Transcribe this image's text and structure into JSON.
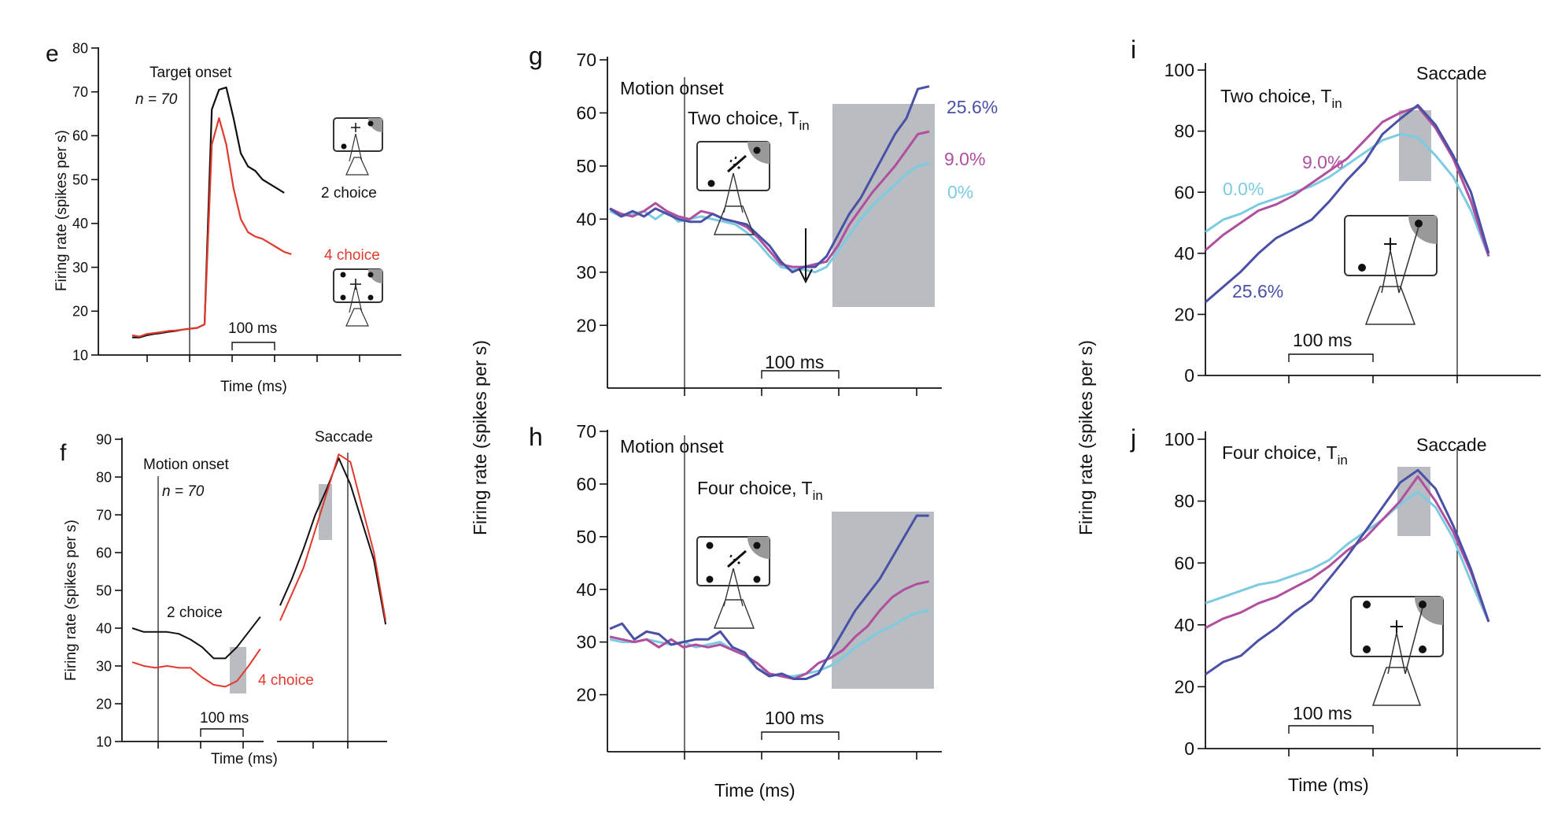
{
  "colors": {
    "black": "#111111",
    "red": "#e03a2e",
    "blue": "#4a50a6",
    "magenta": "#b14f9f",
    "cyan": "#7ccbe0",
    "shade": "#b9bcc1"
  },
  "shared_labels": {
    "firing_rate_small": "Firing rate (spikes per s)",
    "firing_rate_big": "Firing rate (spikes per s)"
  },
  "chart_data": [
    {
      "panel": "e",
      "type": "line",
      "ylabel": "Firing rate (spikes per s)",
      "xlabel": "Time (ms)",
      "ylim": [
        10,
        80
      ],
      "yticks": [
        10,
        20,
        30,
        40,
        50,
        60,
        70,
        80
      ],
      "event_label": "Target onset",
      "n_label": "n = 70",
      "scale_bar": "100 ms",
      "series": [
        {
          "name": "2 choice",
          "color": "#111111",
          "x": [
            0,
            10,
            20,
            30,
            40,
            50,
            60,
            70,
            80,
            90,
            100,
            110,
            120,
            130,
            140,
            150,
            160,
            170,
            180,
            190,
            200,
            210,
            220,
            230,
            240,
            250,
            260
          ],
          "y": [
            14,
            14,
            14.5,
            14.8,
            15,
            15.3,
            15.5,
            15.8,
            16,
            16.2,
            17,
            66,
            70.5,
            71,
            64,
            56,
            53,
            52,
            50,
            49,
            48,
            47,
            null,
            null,
            null,
            null,
            null
          ]
        },
        {
          "name": "4 choice",
          "color": "#e03a2e",
          "x": [
            0,
            10,
            20,
            30,
            40,
            50,
            60,
            70,
            80,
            90,
            100,
            110,
            120,
            130,
            140,
            150,
            160,
            170,
            180,
            190,
            200,
            210,
            220
          ],
          "y": [
            14.5,
            14.2,
            14.8,
            15,
            15.2,
            15.5,
            15.6,
            15.8,
            16,
            16.2,
            17,
            58,
            64,
            58,
            48,
            41,
            38,
            37,
            36.5,
            35.5,
            34.5,
            33.5,
            33
          ]
        }
      ]
    },
    {
      "panel": "f",
      "type": "line",
      "ylabel": "Firing rate (spikes per s)",
      "xlabel": "Time (ms)",
      "ylim": [
        10,
        90
      ],
      "yticks": [
        10,
        20,
        30,
        40,
        50,
        60,
        70,
        80,
        90
      ],
      "event_labels": [
        "Motion onset",
        "Saccade"
      ],
      "n_label": "n = 70",
      "scale_bar": "100 ms",
      "series": [
        {
          "name": "2 choice",
          "color": "#111111",
          "left_y": [
            40,
            39,
            39,
            39,
            38.5,
            37,
            35,
            32,
            32,
            35,
            39,
            43
          ],
          "right_y": [
            46,
            53,
            61,
            70,
            77,
            85,
            78,
            68,
            58,
            41
          ]
        },
        {
          "name": "4 choice",
          "color": "#e03a2e",
          "left_y": [
            31,
            30,
            29.5,
            30,
            29.5,
            29.5,
            27,
            25,
            24.5,
            26,
            30,
            34.5
          ],
          "right_y": [
            42,
            49,
            56,
            66,
            76,
            86,
            84,
            72,
            60,
            42
          ]
        }
      ]
    },
    {
      "panel": "g",
      "type": "line",
      "ylim": [
        15,
        70
      ],
      "yticks": [
        20,
        30,
        40,
        50,
        60,
        70
      ],
      "event_label": "Motion onset",
      "condition": "Two choice, T",
      "condition_sub": "in",
      "scale_bar": "100 ms",
      "series": [
        {
          "name": "25.6%",
          "color": "#4a50a6",
          "y": [
            42,
            40.5,
            41.5,
            40.5,
            42,
            41,
            40,
            39.5,
            39.5,
            41,
            40,
            39.5,
            39,
            37,
            35,
            32,
            30,
            31,
            31,
            33,
            37,
            41,
            44,
            48,
            52,
            56,
            59,
            64.5,
            65
          ]
        },
        {
          "name": "9.0%",
          "color": "#b14f9f",
          "y": [
            42,
            41,
            40.5,
            41.5,
            43,
            41.5,
            40.5,
            40,
            41.5,
            41,
            40,
            39.5,
            38.5,
            36.5,
            34,
            31.5,
            31,
            31,
            31.5,
            32,
            35,
            39,
            42,
            45,
            47.5,
            50,
            53,
            56,
            56.5
          ]
        },
        {
          "name": "0%",
          "color": "#7ccbe0",
          "y": [
            41.5,
            40.5,
            41,
            41.5,
            40,
            41.5,
            39.5,
            40,
            40.5,
            40,
            39.5,
            39,
            37.5,
            35.5,
            33,
            31,
            30.5,
            30.5,
            30,
            31,
            34,
            37,
            40,
            42.5,
            44.5,
            46.5,
            48.5,
            50,
            50.5
          ]
        }
      ]
    },
    {
      "panel": "h",
      "type": "line",
      "ylim": [
        15,
        70
      ],
      "yticks": [
        20,
        30,
        40,
        50,
        60,
        70
      ],
      "event_label": "Motion onset",
      "condition": "Four choice, T",
      "condition_sub": "in",
      "scale_bar": "100 ms",
      "xlabel": "Time (ms)",
      "series": [
        {
          "name": "25.6%",
          "color": "#4a50a6",
          "y": [
            32.5,
            33.5,
            30.5,
            32,
            31.5,
            29.5,
            30,
            30.5,
            30.5,
            32,
            29,
            28,
            25,
            23.5,
            24,
            23,
            23,
            24,
            28,
            32,
            36,
            39,
            42,
            46,
            50,
            54,
            54
          ]
        },
        {
          "name": "9.0%",
          "color": "#b14f9f",
          "y": [
            31,
            30.5,
            30,
            30.5,
            29,
            30.5,
            29,
            29.5,
            29,
            29.5,
            28.5,
            27.5,
            26,
            24,
            23.5,
            23,
            24,
            26,
            27,
            28.5,
            31,
            33,
            36,
            38.5,
            40,
            41,
            41.5
          ]
        },
        {
          "name": "0%",
          "color": "#7ccbe0",
          "y": [
            30.5,
            30,
            30,
            30.5,
            30,
            29.5,
            30,
            29,
            29.5,
            30,
            28.5,
            27.5,
            25,
            24,
            23.5,
            23.5,
            24,
            24.5,
            25.5,
            27,
            29,
            30.5,
            32,
            33,
            34.5,
            35.5,
            36
          ]
        }
      ]
    },
    {
      "panel": "i",
      "type": "line",
      "ylim": [
        0,
        100
      ],
      "yticks": [
        0,
        20,
        40,
        60,
        80,
        100
      ],
      "event_label": "Saccade",
      "condition": "Two choice, T",
      "condition_sub": "in",
      "scale_bar": "100 ms",
      "series": [
        {
          "name": "25.6%",
          "color": "#4a50a6",
          "y": [
            24,
            29,
            34,
            40,
            45,
            48,
            51,
            57,
            64,
            70,
            79,
            84,
            88.5,
            82,
            72,
            60,
            40
          ]
        },
        {
          "name": "9.0%",
          "color": "#b14f9f",
          "y": [
            41,
            46,
            50,
            54,
            56,
            59,
            63,
            67,
            71,
            77,
            83,
            86,
            88,
            81,
            71,
            57,
            39
          ]
        },
        {
          "name": "0.0%",
          "color": "#7ccbe0",
          "y": [
            47,
            51,
            53,
            56,
            58,
            60,
            62,
            65,
            69,
            73,
            77,
            79,
            78,
            72,
            65,
            54,
            39
          ]
        }
      ],
      "value_labels": [
        "0.0%",
        "9.0%",
        "25.6%"
      ]
    },
    {
      "panel": "j",
      "type": "line",
      "ylim": [
        0,
        100
      ],
      "yticks": [
        0,
        20,
        40,
        60,
        80,
        100
      ],
      "event_label": "Saccade",
      "condition": "Four choice, T",
      "condition_sub": "in",
      "scale_bar": "100 ms",
      "xlabel": "Time (ms)",
      "series": [
        {
          "name": "25.6%",
          "color": "#4a50a6",
          "y": [
            24,
            28,
            30,
            35,
            39,
            44,
            48,
            55,
            62,
            70,
            78,
            86,
            90,
            84,
            72,
            58,
            41
          ]
        },
        {
          "name": "9.0%",
          "color": "#b14f9f",
          "y": [
            39,
            42,
            44,
            47,
            49,
            52,
            55,
            59,
            64,
            68,
            74,
            80,
            88,
            80,
            70,
            57,
            41
          ]
        },
        {
          "name": "0.0%",
          "color": "#7ccbe0",
          "y": [
            47,
            49,
            51,
            53,
            54,
            56,
            58,
            61,
            66,
            70,
            74,
            79,
            83,
            78,
            68,
            54,
            41
          ]
        }
      ]
    }
  ],
  "panel_letters": [
    "e",
    "f",
    "g",
    "h",
    "i",
    "j"
  ],
  "series_labels": {
    "e_2choice": "2 choice",
    "e_4choice": "4 choice",
    "f_2choice": "2 choice",
    "f_4choice": "4 choice",
    "g_256": "25.6%",
    "g_90": "9.0%",
    "g_0": "0%",
    "i_00": "0.0%",
    "i_90": "9.0%",
    "i_256": "25.6%"
  }
}
